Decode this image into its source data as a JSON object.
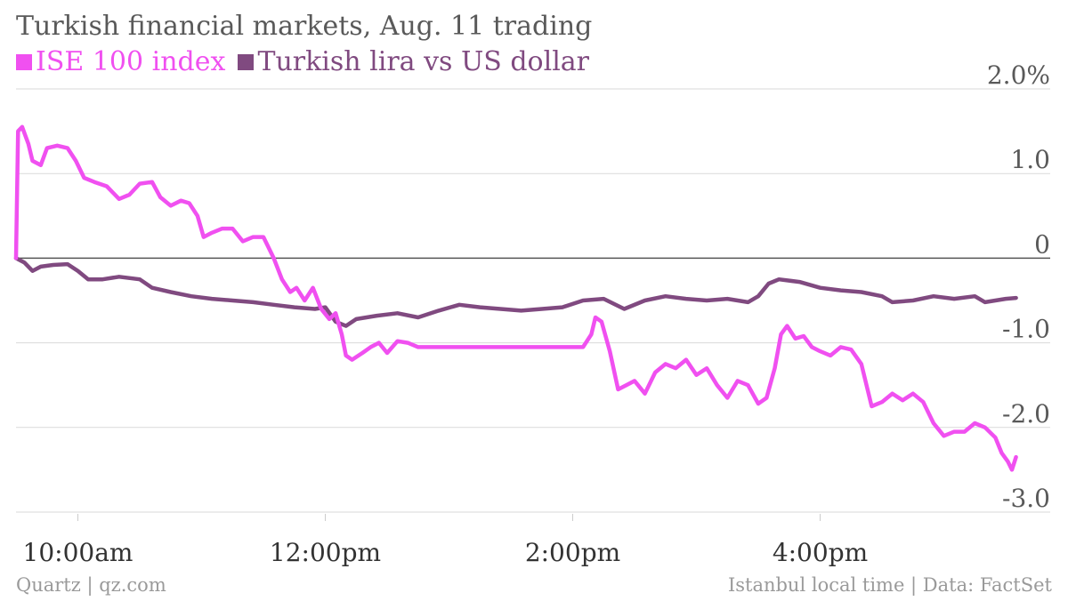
{
  "title": "Turkish financial markets, Aug. 11 trading",
  "legend": [
    {
      "label": "ISE 100 index",
      "color": "#f050f0"
    },
    {
      "label": "Turkish lira vs US dollar",
      "color": "#804a80"
    }
  ],
  "footer": {
    "source": "Quartz | qz.com",
    "note": "Istanbul local time | Data: FactSet"
  },
  "chart_data": {
    "type": "line",
    "xlabel": "",
    "ylabel": "",
    "ylim": [
      -3.0,
      2.0
    ],
    "xlim": [
      "09:30",
      "17:30"
    ],
    "grid": true,
    "y_ticks": [
      {
        "value": 2.0,
        "label": "2.0%"
      },
      {
        "value": 1.0,
        "label": "1.0"
      },
      {
        "value": 0,
        "label": "0"
      },
      {
        "value": -1.0,
        "label": "-1.0"
      },
      {
        "value": -2.0,
        "label": "-2.0"
      },
      {
        "value": -3.0,
        "label": "-3.0"
      }
    ],
    "x_ticks": [
      {
        "value": "10:00",
        "label": "10:00am"
      },
      {
        "value": "12:00",
        "label": "12:00pm"
      },
      {
        "value": "14:00",
        "label": "2:00pm"
      },
      {
        "value": "16:00",
        "label": "4:00pm"
      }
    ],
    "series": [
      {
        "name": "ISE 100 index",
        "color": "#f050f0",
        "points": [
          [
            "09:30",
            0.0
          ],
          [
            "09:31",
            1.5
          ],
          [
            "09:33",
            1.55
          ],
          [
            "09:36",
            1.35
          ],
          [
            "09:38",
            1.15
          ],
          [
            "09:42",
            1.1
          ],
          [
            "09:45",
            1.3
          ],
          [
            "09:50",
            1.33
          ],
          [
            "09:55",
            1.3
          ],
          [
            "09:59",
            1.15
          ],
          [
            "10:03",
            0.95
          ],
          [
            "10:08",
            0.9
          ],
          [
            "10:14",
            0.85
          ],
          [
            "10:20",
            0.7
          ],
          [
            "10:25",
            0.75
          ],
          [
            "10:30",
            0.88
          ],
          [
            "10:36",
            0.9
          ],
          [
            "10:40",
            0.72
          ],
          [
            "10:45",
            0.62
          ],
          [
            "10:50",
            0.68
          ],
          [
            "10:54",
            0.65
          ],
          [
            "10:58",
            0.5
          ],
          [
            "11:01",
            0.25
          ],
          [
            "11:05",
            0.3
          ],
          [
            "11:10",
            0.35
          ],
          [
            "11:15",
            0.35
          ],
          [
            "11:20",
            0.2
          ],
          [
            "11:25",
            0.25
          ],
          [
            "11:30",
            0.25
          ],
          [
            "11:35",
            0.0
          ],
          [
            "11:39",
            -0.25
          ],
          [
            "11:43",
            -0.4
          ],
          [
            "11:46",
            -0.35
          ],
          [
            "11:50",
            -0.5
          ],
          [
            "11:54",
            -0.35
          ],
          [
            "11:58",
            -0.6
          ],
          [
            "12:02",
            -0.72
          ],
          [
            "12:05",
            -0.65
          ],
          [
            "12:08",
            -0.9
          ],
          [
            "12:10",
            -1.15
          ],
          [
            "12:13",
            -1.2
          ],
          [
            "12:18",
            -1.12
          ],
          [
            "12:22",
            -1.05
          ],
          [
            "12:26",
            -1.0
          ],
          [
            "12:30",
            -1.12
          ],
          [
            "12:35",
            -0.98
          ],
          [
            "12:40",
            -1.0
          ],
          [
            "12:45",
            -1.05
          ],
          [
            "14:05",
            -1.05
          ],
          [
            "14:09",
            -0.9
          ],
          [
            "14:11",
            -0.7
          ],
          [
            "14:14",
            -0.75
          ],
          [
            "14:18",
            -1.1
          ],
          [
            "14:22",
            -1.55
          ],
          [
            "14:26",
            -1.5
          ],
          [
            "14:30",
            -1.45
          ],
          [
            "14:35",
            -1.6
          ],
          [
            "14:40",
            -1.35
          ],
          [
            "14:45",
            -1.25
          ],
          [
            "14:50",
            -1.3
          ],
          [
            "14:55",
            -1.2
          ],
          [
            "15:00",
            -1.38
          ],
          [
            "15:05",
            -1.3
          ],
          [
            "15:10",
            -1.5
          ],
          [
            "15:15",
            -1.65
          ],
          [
            "15:20",
            -1.45
          ],
          [
            "15:25",
            -1.5
          ],
          [
            "15:30",
            -1.72
          ],
          [
            "15:34",
            -1.65
          ],
          [
            "15:38",
            -1.3
          ],
          [
            "15:41",
            -0.9
          ],
          [
            "15:44",
            -0.8
          ],
          [
            "15:48",
            -0.95
          ],
          [
            "15:52",
            -0.92
          ],
          [
            "15:56",
            -1.05
          ],
          [
            "16:00",
            -1.1
          ],
          [
            "16:05",
            -1.15
          ],
          [
            "16:10",
            -1.05
          ],
          [
            "16:15",
            -1.08
          ],
          [
            "16:20",
            -1.25
          ],
          [
            "16:25",
            -1.75
          ],
          [
            "16:30",
            -1.7
          ],
          [
            "16:35",
            -1.6
          ],
          [
            "16:40",
            -1.68
          ],
          [
            "16:45",
            -1.6
          ],
          [
            "16:50",
            -1.7
          ],
          [
            "16:55",
            -1.95
          ],
          [
            "17:00",
            -2.1
          ],
          [
            "17:05",
            -2.05
          ],
          [
            "17:10",
            -2.05
          ],
          [
            "17:15",
            -1.95
          ],
          [
            "17:20",
            -2.0
          ],
          [
            "17:25",
            -2.12
          ],
          [
            "17:28",
            -2.3
          ],
          [
            "17:31",
            -2.4
          ],
          [
            "17:33",
            -2.5
          ],
          [
            "17:35",
            -2.35
          ]
        ]
      },
      {
        "name": "Turkish lira vs US dollar",
        "color": "#804a80",
        "points": [
          [
            "09:30",
            0.0
          ],
          [
            "09:34",
            -0.05
          ],
          [
            "09:38",
            -0.15
          ],
          [
            "09:42",
            -0.1
          ],
          [
            "09:48",
            -0.08
          ],
          [
            "09:55",
            -0.07
          ],
          [
            "10:00",
            -0.15
          ],
          [
            "10:05",
            -0.25
          ],
          [
            "10:12",
            -0.25
          ],
          [
            "10:20",
            -0.22
          ],
          [
            "10:30",
            -0.25
          ],
          [
            "10:36",
            -0.35
          ],
          [
            "10:45",
            -0.4
          ],
          [
            "10:55",
            -0.45
          ],
          [
            "11:05",
            -0.48
          ],
          [
            "11:15",
            -0.5
          ],
          [
            "11:25",
            -0.52
          ],
          [
            "11:35",
            -0.55
          ],
          [
            "11:45",
            -0.58
          ],
          [
            "11:55",
            -0.6
          ],
          [
            "12:00",
            -0.58
          ],
          [
            "12:05",
            -0.75
          ],
          [
            "12:10",
            -0.8
          ],
          [
            "12:15",
            -0.72
          ],
          [
            "12:25",
            -0.68
          ],
          [
            "12:35",
            -0.65
          ],
          [
            "12:45",
            -0.7
          ],
          [
            "12:55",
            -0.62
          ],
          [
            "13:05",
            -0.55
          ],
          [
            "13:15",
            -0.58
          ],
          [
            "13:25",
            -0.6
          ],
          [
            "13:35",
            -0.62
          ],
          [
            "13:45",
            -0.6
          ],
          [
            "13:55",
            -0.58
          ],
          [
            "14:05",
            -0.5
          ],
          [
            "14:15",
            -0.48
          ],
          [
            "14:25",
            -0.6
          ],
          [
            "14:35",
            -0.5
          ],
          [
            "14:45",
            -0.45
          ],
          [
            "14:55",
            -0.48
          ],
          [
            "15:05",
            -0.5
          ],
          [
            "15:15",
            -0.48
          ],
          [
            "15:25",
            -0.52
          ],
          [
            "15:30",
            -0.45
          ],
          [
            "15:35",
            -0.3
          ],
          [
            "15:40",
            -0.25
          ],
          [
            "15:50",
            -0.28
          ],
          [
            "16:00",
            -0.35
          ],
          [
            "16:10",
            -0.38
          ],
          [
            "16:20",
            -0.4
          ],
          [
            "16:30",
            -0.45
          ],
          [
            "16:35",
            -0.52
          ],
          [
            "16:45",
            -0.5
          ],
          [
            "16:55",
            -0.45
          ],
          [
            "17:05",
            -0.48
          ],
          [
            "17:15",
            -0.45
          ],
          [
            "17:20",
            -0.52
          ],
          [
            "17:30",
            -0.48
          ],
          [
            "17:35",
            -0.47
          ]
        ]
      }
    ]
  }
}
